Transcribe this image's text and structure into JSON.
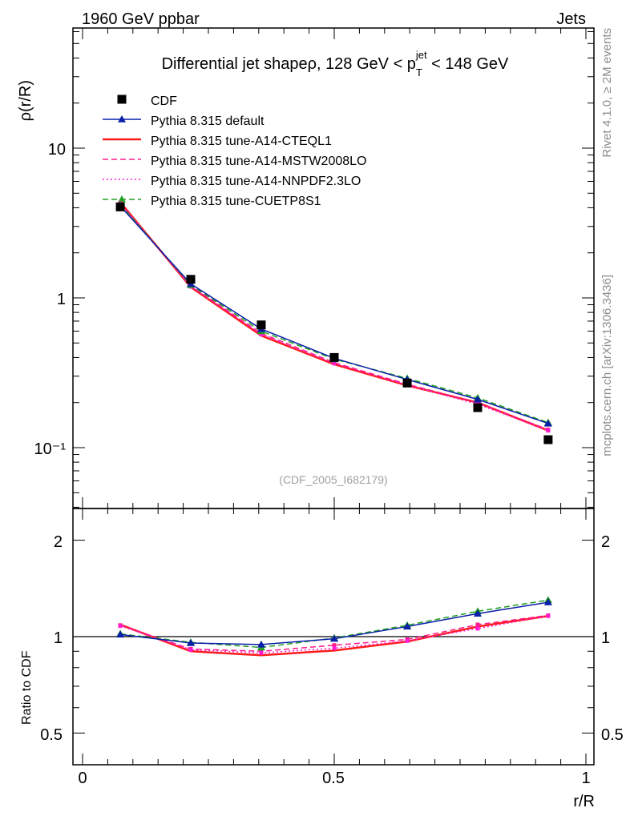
{
  "header": {
    "left": "1960 GeV ppbar",
    "right": "Jets"
  },
  "side_labels": {
    "rivet": "Rivet 4.1.0, ≥ 2M events",
    "mcplots": "mcplots.cern.ch [arXiv:1306.3436]"
  },
  "chart_data": {
    "type": "line",
    "title": "Differential jet shapeρ, 128 GeV < p_T^jet < 148 GeV",
    "title_parts": {
      "main": "Differential jet shapeρ, 128 GeV < p",
      "sub": "T",
      "sup": "jet",
      "tail": " < 148 GeV"
    },
    "analysis_id": "(CDF_2005_I682179)",
    "xlabel": "r/R",
    "ylabel": "ρ(r/R)",
    "ratio_ylabel": "Ratio to CDF",
    "xlim": [
      0,
      1
    ],
    "ylim": [
      0.045,
      80
    ],
    "ylog": true,
    "ratio_ylim": [
      0.4,
      2.3
    ],
    "x_ticks": [
      "0",
      "0.5",
      "1"
    ],
    "y_ticks": [
      "10⁻¹",
      "1",
      "10"
    ],
    "ratio_ticks": [
      "0.5",
      "1",
      "2"
    ],
    "x": [
      0.075,
      0.215,
      0.355,
      0.5,
      0.645,
      0.785,
      0.925
    ],
    "data": {
      "name": "CDF",
      "values": [
        4.05,
        1.33,
        0.66,
        0.4,
        0.27,
        0.185,
        0.113
      ],
      "color": "#000000"
    },
    "series": [
      {
        "name": "Pythia 8.315 default",
        "color": "#0a1ea8",
        "style": "solid",
        "marker": "triangle",
        "values": [
          4.1,
          1.24,
          0.62,
          0.395,
          0.285,
          0.21,
          0.145
        ],
        "ratio": [
          1.015,
          0.955,
          0.945,
          0.985,
          1.075,
          1.18,
          1.28
        ]
      },
      {
        "name": "Pythia 8.315 tune-A14-CTEQL1",
        "color": "#ff1a1a",
        "style": "solid",
        "marker": "none",
        "values": [
          4.35,
          1.18,
          0.56,
          0.36,
          0.26,
          0.2,
          0.13
        ],
        "ratio": [
          1.09,
          0.9,
          0.875,
          0.905,
          0.965,
          1.075,
          1.16
        ]
      },
      {
        "name": "Pythia 8.315 tune-A14-MSTW2008LO",
        "color": "#ff1a8c",
        "style": "dashed",
        "marker": "square",
        "values": [
          4.3,
          1.2,
          0.58,
          0.37,
          0.265,
          0.2,
          0.132
        ],
        "ratio": [
          1.085,
          0.915,
          0.9,
          0.94,
          0.98,
          1.09,
          1.165
        ]
      },
      {
        "name": "Pythia 8.315 tune-A14-NNPDF2.3LO",
        "color": "#ff1ad2",
        "style": "dotted",
        "marker": "square",
        "values": [
          4.25,
          1.19,
          0.57,
          0.365,
          0.262,
          0.195,
          0.13
        ],
        "ratio": [
          1.08,
          0.91,
          0.89,
          0.92,
          0.97,
          1.06,
          1.16
        ]
      },
      {
        "name": "Pythia 8.315 tune-CUETP8S1",
        "color": "#20a020",
        "style": "dashed",
        "marker": "triangle",
        "values": [
          4.2,
          1.22,
          0.6,
          0.39,
          0.29,
          0.215,
          0.147
        ],
        "ratio": [
          1.02,
          0.96,
          0.925,
          0.99,
          1.085,
          1.2,
          1.3
        ]
      }
    ]
  }
}
